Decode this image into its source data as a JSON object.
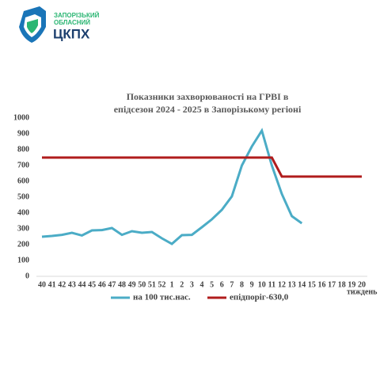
{
  "logo": {
    "line1": "ЗАПОРІЗЬКИЙ",
    "line2": "ОБЛАСНИЙ",
    "name": "ЦКПХ"
  },
  "chart_data": {
    "type": "line",
    "title": [
      "Показники захворюваності на ГРВІ в",
      "епідсезон 2024 - 2025 в Запорізькому регіоні"
    ],
    "x_label": "тиждень",
    "categories": [
      "40",
      "41",
      "42",
      "43",
      "44",
      "45",
      "46",
      "47",
      "48",
      "49",
      "50",
      "51",
      "52",
      "1",
      "2",
      "3",
      "4",
      "5",
      "6",
      "7",
      "8",
      "9",
      "10",
      "11",
      "12",
      "13",
      "14",
      "15",
      "16",
      "17",
      "18",
      "19",
      "20"
    ],
    "series": [
      {
        "name": "на 100 тис.нас.",
        "color": "#4bacc6",
        "values": [
          250,
          255,
          262,
          275,
          258,
          290,
          292,
          305,
          262,
          285,
          275,
          280,
          240,
          205,
          260,
          262,
          310,
          360,
          420,
          505,
          700,
          820,
          920,
          700,
          520,
          380,
          335,
          null,
          null,
          null,
          null,
          null,
          null
        ]
      },
      {
        "name": "епідпоріг-630,0",
        "color": "#b01c1c",
        "values": [
          750,
          750,
          750,
          750,
          750,
          750,
          750,
          750,
          750,
          750,
          750,
          750,
          750,
          750,
          750,
          750,
          750,
          750,
          750,
          750,
          750,
          750,
          750,
          750,
          630,
          630,
          630,
          630,
          630,
          630,
          630,
          630,
          630
        ]
      }
    ],
    "ylim": [
      0,
      1000
    ],
    "yticks": [
      0,
      100,
      200,
      300,
      400,
      500,
      600,
      700,
      800,
      900,
      1000
    ]
  }
}
